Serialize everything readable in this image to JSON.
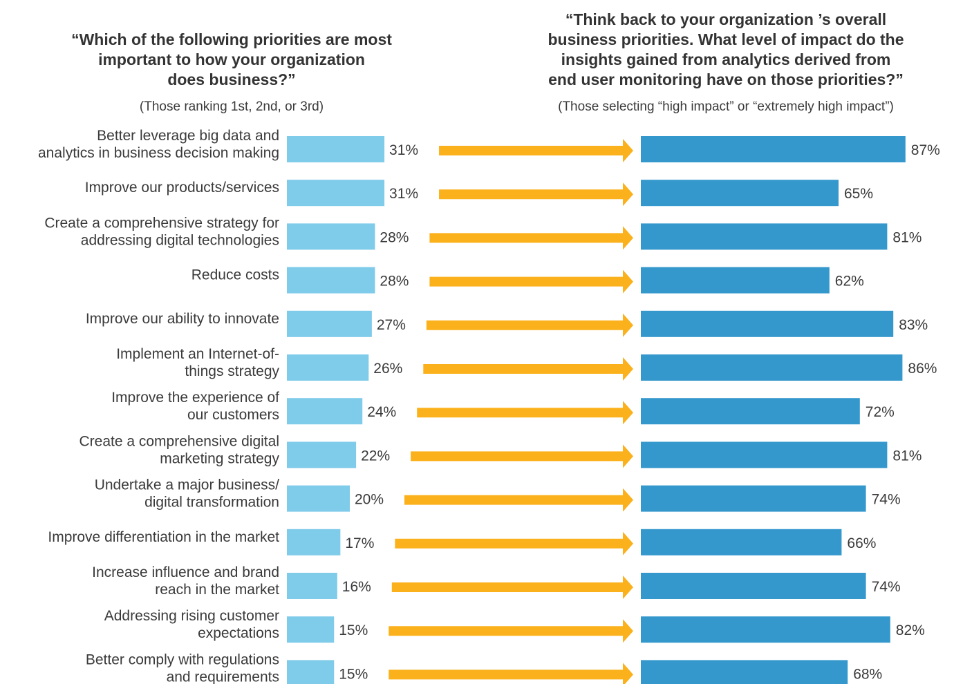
{
  "chart_data": {
    "type": "bar",
    "left_title": "“Which of the following priorities are most\nimportant to how your organization\ndoes business?”",
    "left_subtitle": "(Those ranking 1st, 2nd, or 3rd)",
    "right_title": "“Think back to your organization ’s overall\nbusiness priorities. What level of impact do the\ninsights gained from analytics derived from\nend user monitoring have on those priorities?”",
    "right_subtitle": "(Those selecting “high impact” or “extremely high impact”)",
    "categories": [
      [
        "Better leverage big data and",
        "analytics in business decision making"
      ],
      [
        "Improve our products/services"
      ],
      [
        "Create a comprehensive strategy for",
        "addressing digital technologies"
      ],
      [
        "Reduce costs"
      ],
      [
        "Improve our ability to innovate"
      ],
      [
        "Implement an Internet-of-",
        "things strategy"
      ],
      [
        "Improve the experience of",
        "our customers"
      ],
      [
        "Create a comprehensive digital",
        "marketing strategy"
      ],
      [
        "Undertake a major business/",
        "digital transformation"
      ],
      [
        "Improve differentiation in the market"
      ],
      [
        "Increase influence and brand",
        "reach in the market"
      ],
      [
        "Addressing rising customer",
        "expectations"
      ],
      [
        "Better comply with regulations",
        "and requirements"
      ]
    ],
    "series": [
      {
        "values": [
          31,
          31,
          28,
          28,
          27,
          26,
          24,
          22,
          20,
          17,
          16,
          15,
          15
        ],
        "color": "#7ecbea"
      },
      {
        "values": [
          87,
          65,
          81,
          62,
          83,
          86,
          72,
          81,
          74,
          66,
          74,
          82,
          68
        ],
        "color": "#3498cc"
      }
    ],
    "value_suffix": "%",
    "arrow_color": "#fbb11c",
    "grid": false,
    "legend": "none"
  }
}
